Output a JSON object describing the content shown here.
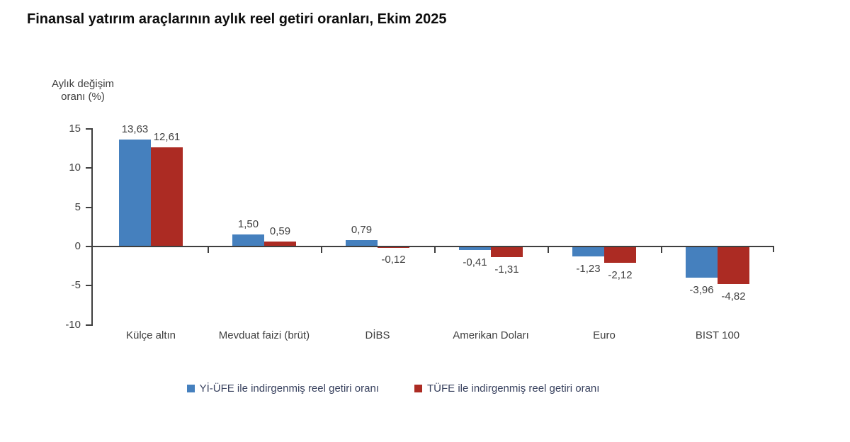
{
  "title": "Finansal yatırım araçlarının aylık reel getiri oranları, Ekim 2025",
  "y_axis_title_line1": "Aylık değişim",
  "y_axis_title_line2": "oranı (%)",
  "chart_data": {
    "type": "bar",
    "title": "Finansal yatırım araçlarının aylık reel getiri oranları, Ekim 2025",
    "ylabel": "Aylık değişim oranı (%)",
    "xlabel": "",
    "categories": [
      "Külçe altın",
      "Mevduat faizi (brüt)",
      "DİBS",
      "Amerikan Doları",
      "Euro",
      "BIST 100"
    ],
    "series": [
      {
        "name": "Yİ-ÜFE ile indirgenmiş reel getiri oranı",
        "color": "#4580BE",
        "values": [
          13.63,
          1.5,
          0.79,
          -0.41,
          -1.23,
          -3.96
        ]
      },
      {
        "name": "TÜFE ile indirgenmiş reel getiri oranı",
        "color": "#AC2B23",
        "values": [
          12.61,
          0.59,
          -0.12,
          -1.31,
          -2.12,
          -4.82
        ]
      }
    ],
    "y_ticks": [
      15,
      10,
      5,
      0,
      -5,
      -10
    ],
    "ylim": [
      -10,
      15
    ],
    "decimal_separator": ",",
    "grid": false,
    "legend_position": "bottom"
  }
}
